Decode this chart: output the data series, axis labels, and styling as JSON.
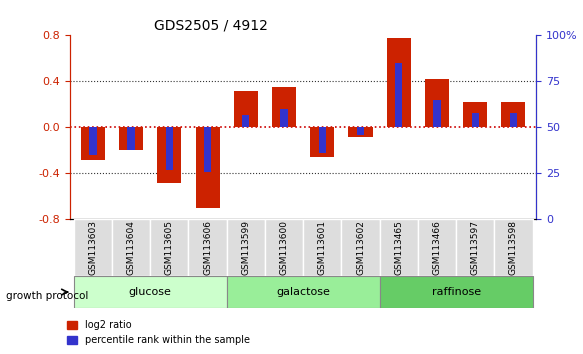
{
  "title": "GDS2505 / 4912",
  "samples": [
    "GSM113603",
    "GSM113604",
    "GSM113605",
    "GSM113606",
    "GSM113599",
    "GSM113600",
    "GSM113601",
    "GSM113602",
    "GSM113465",
    "GSM113466",
    "GSM113597",
    "GSM113598"
  ],
  "log2_ratio": [
    -0.28,
    -0.2,
    -0.48,
    -0.7,
    0.32,
    0.35,
    -0.26,
    -0.08,
    0.78,
    0.42,
    0.22,
    0.22
  ],
  "percentile_rank": [
    35,
    38,
    27,
    26,
    57,
    60,
    36,
    46,
    85,
    65,
    58,
    58
  ],
  "groups": [
    {
      "label": "glucose",
      "start": 0,
      "end": 4,
      "color": "#ccffcc"
    },
    {
      "label": "galactose",
      "start": 4,
      "end": 8,
      "color": "#99ee99"
    },
    {
      "label": "raffinose",
      "start": 8,
      "end": 12,
      "color": "#66cc66"
    }
  ],
  "ylim": [
    -0.8,
    0.8
  ],
  "yticks_left": [
    -0.8,
    -0.4,
    0.0,
    0.4,
    0.8
  ],
  "yticks_right": [
    0,
    25,
    50,
    75,
    100
  ],
  "bar_color_red": "#cc2200",
  "bar_color_blue": "#3333cc",
  "zero_line_color": "#cc0000",
  "dotted_line_color": "#333333",
  "legend_red": "log2 ratio",
  "legend_blue": "percentile rank within the sample",
  "growth_protocol_label": "growth protocol"
}
